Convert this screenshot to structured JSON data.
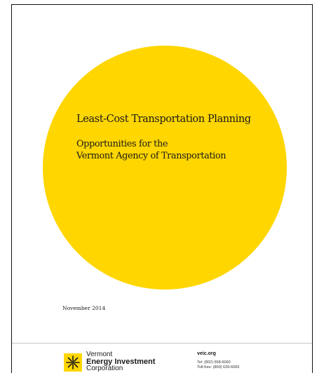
{
  "cover": {
    "title": "Least-Cost Transportation Planning",
    "subtitle_line1": "Opportunities for the",
    "subtitle_line2": "Vermont Agency of Transportation",
    "date": "November 2014"
  },
  "footer": {
    "org_line1": "Vermont",
    "org_line2": "Energy Investment",
    "org_line3": "Corporation",
    "website": "veic.org",
    "tel": "Tel: (802) 658-6060",
    "tollfree": "Toll-free: (800) 639-6069"
  },
  "colors": {
    "accent_yellow": "#ffd600",
    "text": "#1a1a1a",
    "border": "#111111"
  },
  "icons": {
    "logo": "veic-star-logo-icon"
  }
}
